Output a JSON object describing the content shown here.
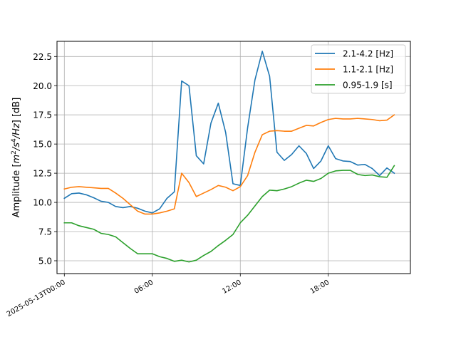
{
  "chart_data": {
    "type": "line",
    "title": "",
    "xlabel": "",
    "ylabel_html": "Amplitude [m²/s⁴/Hz] [dB]",
    "ylabel_parts": {
      "pre": "Amplitude [",
      "m": "m",
      "two": "2",
      "s": "/s",
      "four": "4",
      "hz": "/Hz",
      "post": "] [dB]"
    },
    "xlim_hours": [
      -0.5,
      23.6
    ],
    "ylim": [
      3.9,
      23.8
    ],
    "grid": true,
    "legend_position": "top-right",
    "x_ticks": [
      {
        "hour": 0,
        "label": "2025-05-13T00:00"
      },
      {
        "hour": 6,
        "label": "06:00"
      },
      {
        "hour": 12,
        "label": "12:00"
      },
      {
        "hour": 18,
        "label": "18:00"
      }
    ],
    "y_ticks": [
      {
        "value": 5.0,
        "label": "5.0"
      },
      {
        "value": 7.5,
        "label": "7.5"
      },
      {
        "value": 10.0,
        "label": "10.0"
      },
      {
        "value": 12.5,
        "label": "12.5"
      },
      {
        "value": 15.0,
        "label": "15.0"
      },
      {
        "value": 17.5,
        "label": "17.5"
      },
      {
        "value": 20.0,
        "label": "20.0"
      },
      {
        "value": 22.5,
        "label": "22.5"
      }
    ],
    "x_hours": [
      0,
      0.5,
      1,
      1.5,
      2,
      2.5,
      3,
      3.5,
      4,
      4.5,
      5,
      5.5,
      6,
      6.5,
      7,
      7.5,
      8,
      8.5,
      9,
      9.5,
      10,
      10.5,
      11,
      11.5,
      12,
      12.5,
      13,
      13.5,
      14,
      14.5,
      15,
      15.5,
      16,
      16.5,
      17,
      17.5,
      18,
      18.5,
      19,
      19.5,
      20,
      20.5,
      21,
      21.5,
      22,
      22.5
    ],
    "series": [
      {
        "name": "2.1-4.2 [Hz]",
        "color": "#1f77b4",
        "values": [
          10.35,
          10.75,
          10.8,
          10.65,
          10.4,
          10.1,
          10.0,
          9.65,
          9.55,
          9.65,
          9.5,
          9.25,
          9.1,
          9.45,
          10.35,
          10.9,
          20.4,
          20.0,
          14.0,
          13.3,
          16.8,
          18.5,
          16.0,
          11.6,
          11.45,
          16.4,
          20.5,
          22.95,
          20.8,
          14.3,
          13.6,
          14.1,
          14.85,
          14.2,
          12.9,
          13.55,
          14.85,
          13.75,
          13.55,
          13.5,
          13.2,
          13.25,
          12.9,
          12.3,
          12.95,
          12.5
        ]
      },
      {
        "name": "1.1-2.1 [Hz]",
        "color": "#ff7f0e",
        "values": [
          11.15,
          11.3,
          11.35,
          11.3,
          11.25,
          11.2,
          11.2,
          10.8,
          10.35,
          9.8,
          9.25,
          9.0,
          9.0,
          9.1,
          9.25,
          9.45,
          12.5,
          11.7,
          10.5,
          10.8,
          11.1,
          11.45,
          11.3,
          11.0,
          11.35,
          12.3,
          14.3,
          15.8,
          16.1,
          16.15,
          16.1,
          16.1,
          16.35,
          16.6,
          16.55,
          16.85,
          17.1,
          17.2,
          17.15,
          17.15,
          17.2,
          17.15,
          17.1,
          17.0,
          17.05,
          17.5
        ]
      },
      {
        "name": "0.95-1.9 [s]",
        "color": "#2ca02c",
        "values": [
          8.25,
          8.25,
          8.0,
          7.85,
          7.7,
          7.35,
          7.25,
          7.05,
          6.55,
          6.05,
          5.6,
          5.6,
          5.6,
          5.35,
          5.2,
          4.95,
          5.05,
          4.9,
          5.05,
          5.45,
          5.8,
          6.3,
          6.75,
          7.25,
          8.25,
          8.9,
          9.7,
          10.5,
          11.05,
          11.0,
          11.15,
          11.35,
          11.65,
          11.9,
          11.8,
          12.05,
          12.5,
          12.7,
          12.75,
          12.75,
          12.4,
          12.3,
          12.35,
          12.2,
          12.15,
          13.15
        ]
      }
    ]
  }
}
